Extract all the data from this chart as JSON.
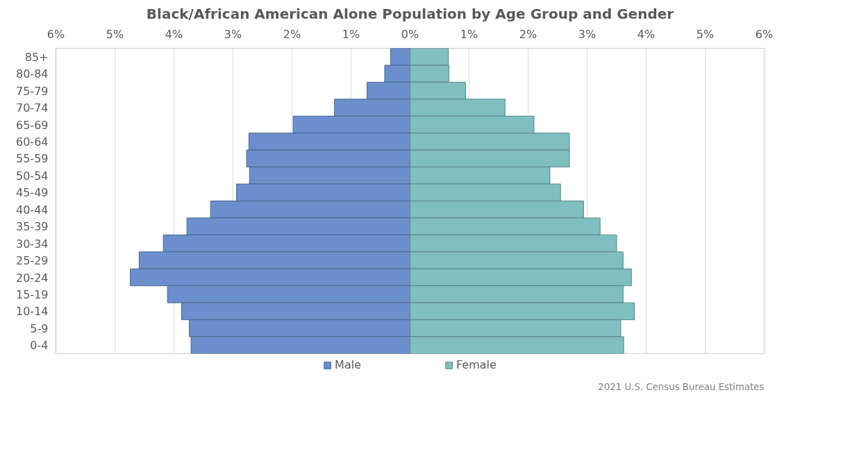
{
  "chart_data": {
    "type": "bar",
    "orientation": "horizontal",
    "stacked": true,
    "title": "Black/African American Alone Population by Age Group and Gender",
    "categories": [
      "85+",
      "80-84",
      "75-79",
      "70-74",
      "65-69",
      "60-64",
      "55-59",
      "50-54",
      "45-49",
      "40-44",
      "35-39",
      "30-34",
      "25-29",
      "20-24",
      "15-19",
      "10-14",
      "5-9",
      "0-4"
    ],
    "series": [
      {
        "name": "Male",
        "color": "#6a8fcc",
        "values": [
          -0.33,
          -0.43,
          -0.73,
          -1.28,
          -1.98,
          -2.73,
          -2.77,
          -2.72,
          -2.94,
          -3.38,
          -3.78,
          -4.18,
          -4.59,
          -4.74,
          -4.11,
          -3.87,
          -3.74,
          -3.71
        ]
      },
      {
        "name": "Female",
        "color": "#80bfbf",
        "values": [
          0.65,
          0.66,
          0.94,
          1.61,
          2.1,
          2.7,
          2.7,
          2.37,
          2.55,
          2.94,
          3.22,
          3.5,
          3.61,
          3.75,
          3.61,
          3.8,
          3.57,
          3.62
        ]
      }
    ],
    "xlim": [
      -6,
      6
    ],
    "xticks": [
      {
        "value": -6,
        "label": "6%"
      },
      {
        "value": -5,
        "label": "5%"
      },
      {
        "value": -4,
        "label": "4%"
      },
      {
        "value": -3,
        "label": "3%"
      },
      {
        "value": -2,
        "label": "2%"
      },
      {
        "value": -1,
        "label": "1%"
      },
      {
        "value": 0,
        "label": "0%"
      },
      {
        "value": 1,
        "label": "1%"
      },
      {
        "value": 2,
        "label": "2%"
      },
      {
        "value": 3,
        "label": "3%"
      },
      {
        "value": 4,
        "label": "4%"
      },
      {
        "value": 5,
        "label": "5%"
      },
      {
        "value": 6,
        "label": "6%"
      }
    ],
    "grid": "x",
    "legend": "bottom",
    "annotations": [
      "2021 U.S. Census Bureau Estimates"
    ]
  }
}
